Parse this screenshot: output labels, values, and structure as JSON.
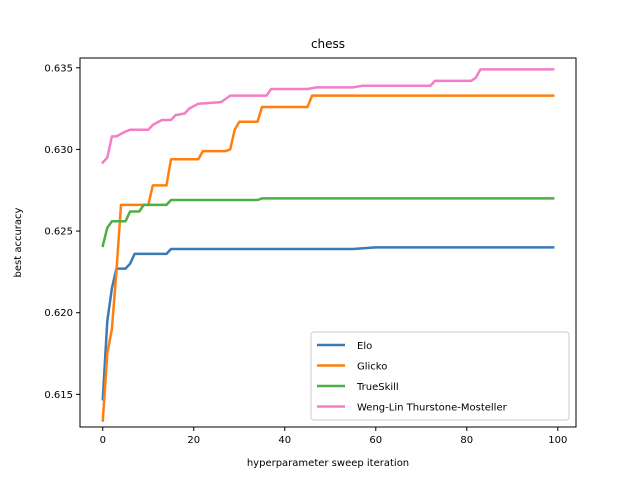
{
  "chart_data": {
    "type": "line",
    "title": "chess",
    "xlabel": "hyperparameter sweep iteration",
    "ylabel": "best accuracy",
    "xlim": [
      -5,
      104
    ],
    "ylim": [
      0.613,
      0.6356
    ],
    "x_ticks": [
      0,
      20,
      40,
      60,
      80,
      100
    ],
    "x_tick_labels": [
      "0",
      "20",
      "40",
      "60",
      "80",
      "100"
    ],
    "y_ticks": [
      0.615,
      0.62,
      0.625,
      0.63,
      0.635
    ],
    "y_tick_labels": [
      "0.615",
      "0.620",
      "0.625",
      "0.630",
      "0.635"
    ],
    "grid": false,
    "legend_position": "lower-right",
    "series": [
      {
        "name": "Elo",
        "color": "#3a7ab5",
        "points": [
          [
            0,
            0.6147
          ],
          [
            1,
            0.6195
          ],
          [
            2,
            0.6215
          ],
          [
            3,
            0.6227
          ],
          [
            5,
            0.6227
          ],
          [
            6,
            0.623
          ],
          [
            7,
            0.6236
          ],
          [
            14,
            0.6236
          ],
          [
            15,
            0.6239
          ],
          [
            20,
            0.6239
          ],
          [
            40,
            0.6239
          ],
          [
            55,
            0.6239
          ],
          [
            60,
            0.624
          ],
          [
            99,
            0.624
          ]
        ]
      },
      {
        "name": "Glicko",
        "color": "#ff7f0e",
        "points": [
          [
            0,
            0.6134
          ],
          [
            1,
            0.6175
          ],
          [
            2,
            0.619
          ],
          [
            3,
            0.6225
          ],
          [
            4,
            0.6266
          ],
          [
            10,
            0.6266
          ],
          [
            11,
            0.6278
          ],
          [
            14,
            0.6278
          ],
          [
            15,
            0.6294
          ],
          [
            21,
            0.6294
          ],
          [
            22,
            0.6299
          ],
          [
            27,
            0.6299
          ],
          [
            28,
            0.63
          ],
          [
            29,
            0.6312
          ],
          [
            30,
            0.6317
          ],
          [
            34,
            0.6317
          ],
          [
            35,
            0.6326
          ],
          [
            45,
            0.6326
          ],
          [
            46,
            0.6333
          ],
          [
            99,
            0.6333
          ]
        ]
      },
      {
        "name": "TrueSkill",
        "color": "#4caf46",
        "points": [
          [
            0,
            0.6241
          ],
          [
            1,
            0.6252
          ],
          [
            2,
            0.6256
          ],
          [
            5,
            0.6256
          ],
          [
            6,
            0.6262
          ],
          [
            8,
            0.6262
          ],
          [
            9,
            0.6266
          ],
          [
            14,
            0.6266
          ],
          [
            15,
            0.6269
          ],
          [
            34,
            0.6269
          ],
          [
            35,
            0.627
          ],
          [
            80,
            0.627
          ],
          [
            99,
            0.627
          ]
        ]
      },
      {
        "name": "Weng-Lin Thurstone-Mosteller",
        "color": "#f47ec6",
        "points": [
          [
            0,
            0.6292
          ],
          [
            1,
            0.6295
          ],
          [
            2,
            0.6308
          ],
          [
            3,
            0.6308
          ],
          [
            5,
            0.6311
          ],
          [
            6,
            0.6312
          ],
          [
            10,
            0.6312
          ],
          [
            11,
            0.6315
          ],
          [
            13,
            0.6318
          ],
          [
            15,
            0.6318
          ],
          [
            16,
            0.6321
          ],
          [
            18,
            0.6322
          ],
          [
            19,
            0.6325
          ],
          [
            21,
            0.6328
          ],
          [
            26,
            0.6329
          ],
          [
            28,
            0.6333
          ],
          [
            36,
            0.6333
          ],
          [
            37,
            0.6337
          ],
          [
            45,
            0.6337
          ],
          [
            47,
            0.6338
          ],
          [
            55,
            0.6338
          ],
          [
            57,
            0.6339
          ],
          [
            72,
            0.6339
          ],
          [
            73,
            0.6342
          ],
          [
            81,
            0.6342
          ],
          [
            82,
            0.6344
          ],
          [
            83,
            0.6349
          ],
          [
            99,
            0.6349
          ]
        ]
      }
    ]
  }
}
